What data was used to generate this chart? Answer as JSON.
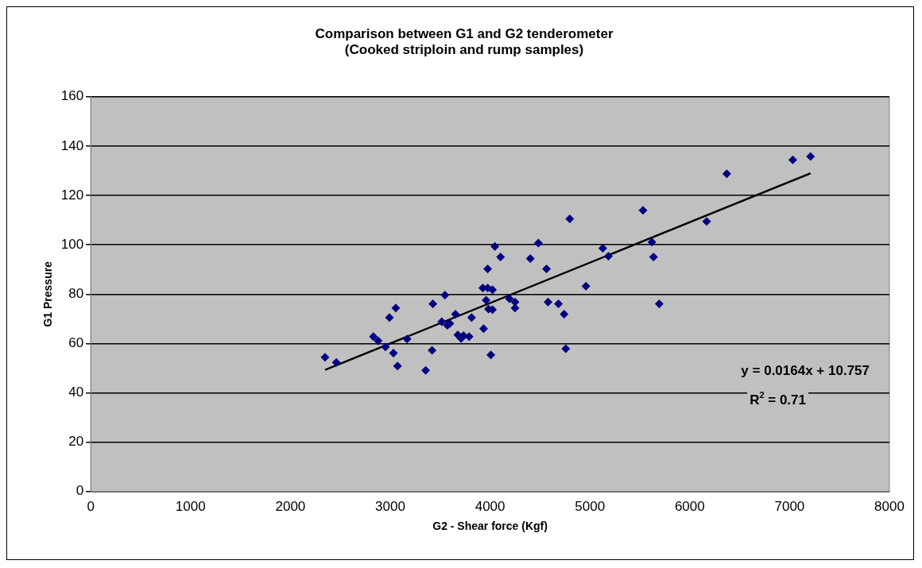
{
  "chart_data": {
    "type": "scatter",
    "title": "Comparison between G1 and G2 tenderometer\n(Cooked striploin and rump samples)",
    "xlabel": "G2 - Shear force (Kgf)",
    "ylabel": "G1 Pressure",
    "x": [
      2347,
      2460,
      2831,
      2879,
      2952,
      2992,
      3032,
      3056,
      3073,
      3169,
      3355,
      3427,
      3419,
      3516,
      3548,
      3572,
      3597,
      3653,
      3677,
      3710,
      3734,
      3790,
      3815,
      3927,
      3935,
      3960,
      3976,
      3976,
      3984,
      4008,
      4024,
      4024,
      4048,
      4105,
      4194,
      4250,
      4250,
      4403,
      4484,
      4565,
      4581,
      4685,
      4742,
      4758,
      4798,
      4960,
      5129,
      5185,
      5532,
      5621,
      5637,
      5694,
      6169,
      6371,
      7032,
      7210
    ],
    "series": [
      {
        "color": "#000080",
        "values": [
          54.4,
          52.3,
          62.8,
          61.1,
          58.6,
          70.5,
          56.1,
          74.4,
          50.9,
          61.8,
          49.1,
          76.1,
          57.2,
          68.8,
          79.6,
          67.4,
          68.1,
          71.9,
          63.5,
          62.1,
          63.2,
          62.8,
          70.5,
          82.5,
          66.0,
          77.5,
          82.5,
          90.2,
          74.0,
          55.4,
          81.8,
          73.7,
          99.3,
          95.1,
          78.2,
          76.8,
          74.4,
          94.4,
          100.7,
          90.2,
          76.8,
          76.1,
          71.9,
          57.9,
          110.5,
          83.2,
          98.6,
          95.4,
          114.0,
          101.1,
          95.1,
          76.1,
          109.5,
          128.8,
          134.4,
          135.8
        ]
      },
      {
        "type": "line",
        "color": "#000000",
        "x": [
          2347,
          7210
        ],
        "values": [
          49.3,
          129.0
        ],
        "marker": "none"
      }
    ],
    "xlim": [
      0,
      8000
    ],
    "xticks": [
      0,
      1000,
      2000,
      3000,
      4000,
      5000,
      6000,
      7000,
      8000
    ],
    "ylim": [
      0,
      160
    ],
    "yticks": [
      0,
      20,
      40,
      60,
      80,
      100,
      120,
      140,
      160
    ],
    "grid": "y",
    "legend": false,
    "marker": "diamond",
    "annotations": [
      "y = 0.0164x + 10.757",
      "R$^{2}$ = 0.71"
    ]
  }
}
